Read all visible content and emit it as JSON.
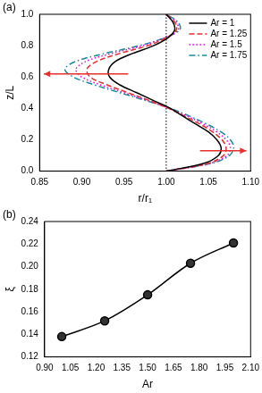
{
  "chart_data": [
    {
      "type": "line",
      "title": "(a)",
      "x_label": "r/r₁",
      "y_label": "z/L",
      "xlim": [
        0.85,
        1.1
      ],
      "xticks": [
        {
          "value": 0.85,
          "label": "0.85"
        },
        {
          "value": 0.9,
          "label": "0.90"
        },
        {
          "value": 0.95,
          "label": "0.95"
        },
        {
          "value": 1.0,
          "label": "1.00"
        },
        {
          "value": 1.05,
          "label": "1.05"
        },
        {
          "value": 1.1,
          "label": "1.10"
        }
      ],
      "ylim": [
        0,
        1
      ],
      "yticks": [
        {
          "value": 0,
          "label": "0.0"
        },
        {
          "value": 0.2,
          "label": "0.2"
        },
        {
          "value": 0.4,
          "label": "0.4"
        },
        {
          "value": 0.6,
          "label": "0.6"
        },
        {
          "value": 0.8,
          "label": "0.8"
        },
        {
          "value": 1,
          "label": "1.0"
        }
      ],
      "grid": false,
      "legend": "upper right",
      "vline": 1.0,
      "arrows": [
        {
          "from": [
            0.955,
            0.62
          ],
          "to": [
            0.855,
            0.62
          ],
          "color": "#e8312f"
        },
        {
          "from": [
            1.04,
            0.13
          ],
          "to": [
            1.095,
            0.13
          ],
          "color": "#e8312f"
        }
      ],
      "series": [
        {
          "name": "Ar = 1",
          "color": "#000000",
          "line_style": "solid",
          "x": [
            1.0,
            1.045,
            1.062,
            1.065,
            1.06,
            1.05,
            1.035,
            1.02,
            1.005,
            0.985,
            0.965,
            0.945,
            0.933,
            0.932,
            0.94,
            0.96,
            0.985,
            1.002,
            1.01,
            1.008,
            1.0
          ],
          "values": [
            0,
            0.05,
            0.1,
            0.15,
            0.2,
            0.25,
            0.3,
            0.35,
            0.4,
            0.45,
            0.5,
            0.55,
            0.6,
            0.65,
            0.7,
            0.75,
            0.8,
            0.85,
            0.9,
            0.95,
            1.0
          ]
        },
        {
          "name": "Ar = 1.25",
          "color": "#e0302f",
          "line_style": "dashed",
          "x": [
            1.0,
            1.05,
            1.068,
            1.071,
            1.066,
            1.055,
            1.04,
            1.022,
            1.003,
            0.98,
            0.955,
            0.93,
            0.91,
            0.906,
            0.918,
            0.945,
            0.978,
            1.0,
            1.012,
            1.01,
            1.0
          ],
          "values": [
            0,
            0.05,
            0.1,
            0.15,
            0.2,
            0.25,
            0.3,
            0.35,
            0.4,
            0.45,
            0.5,
            0.55,
            0.6,
            0.65,
            0.7,
            0.75,
            0.8,
            0.85,
            0.9,
            0.95,
            1.0
          ]
        },
        {
          "name": "Ar = 1.5",
          "color": "#e000e0",
          "line_style": "dotted",
          "x": [
            1.0,
            1.052,
            1.072,
            1.076,
            1.071,
            1.06,
            1.044,
            1.025,
            1.004,
            0.978,
            0.95,
            0.922,
            0.9,
            0.893,
            0.905,
            0.935,
            0.972,
            0.998,
            1.014,
            1.012,
            1.0
          ],
          "values": [
            0,
            0.05,
            0.1,
            0.15,
            0.2,
            0.25,
            0.3,
            0.35,
            0.4,
            0.45,
            0.5,
            0.55,
            0.6,
            0.65,
            0.7,
            0.75,
            0.8,
            0.85,
            0.9,
            0.95,
            1.0
          ]
        },
        {
          "name": "Ar = 1.75",
          "color": "#1a8a9a",
          "line_style": "dashdot",
          "x": [
            1.0,
            1.054,
            1.075,
            1.08,
            1.076,
            1.065,
            1.048,
            1.028,
            1.005,
            0.976,
            0.945,
            0.915,
            0.89,
            0.88,
            0.893,
            0.927,
            0.968,
            0.998,
            1.016,
            1.014,
            1.0
          ],
          "values": [
            0,
            0.05,
            0.1,
            0.15,
            0.2,
            0.25,
            0.3,
            0.35,
            0.4,
            0.45,
            0.5,
            0.55,
            0.6,
            0.65,
            0.7,
            0.75,
            0.8,
            0.85,
            0.9,
            0.95,
            1.0
          ]
        }
      ]
    },
    {
      "type": "line",
      "title": "(b)",
      "x_label": "Ar",
      "y_label": "ξ",
      "xlim": [
        0.9,
        2.1
      ],
      "xticks": [
        {
          "value": 0.9,
          "label": "0.90"
        },
        {
          "value": 1.05,
          "label": "1.05"
        },
        {
          "value": 1.2,
          "label": "1.20"
        },
        {
          "value": 1.35,
          "label": "1.35"
        },
        {
          "value": 1.5,
          "label": "1.50"
        },
        {
          "value": 1.65,
          "label": "1.65"
        },
        {
          "value": 1.8,
          "label": "1.80"
        },
        {
          "value": 1.95,
          "label": "1.95"
        },
        {
          "value": 2.1,
          "label": "2.10"
        }
      ],
      "ylim": [
        0.12,
        0.24
      ],
      "yticks": [
        0.12,
        0.14,
        0.16,
        0.18,
        {
          "value": 0.2,
          "label": "0.20"
        },
        0.22,
        0.24
      ],
      "grid": false,
      "x": [
        1.0,
        1.25,
        1.5,
        1.75,
        2.0
      ],
      "values": [
        0.138,
        0.152,
        0.175,
        0.203,
        0.221
      ],
      "color": "#000000",
      "marker": "circle",
      "line_style": "solid"
    }
  ]
}
